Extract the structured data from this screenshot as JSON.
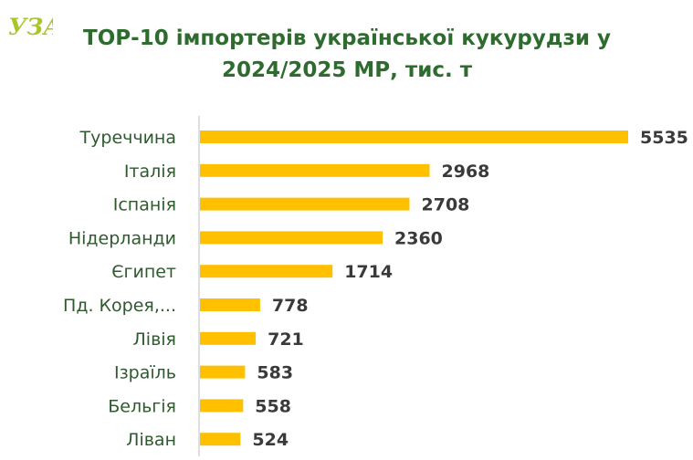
{
  "logo": {
    "text": "УЗА"
  },
  "chart_data": {
    "type": "bar",
    "orientation": "horizontal",
    "title": "ТОР-10 імпортерів української кукурудзи у 2024/2025 МР, тис. т",
    "title_lines": [
      "ТОР-10 імпортерів української кукурудзи у",
      "2024/2025 МР, тис. т"
    ],
    "categories": [
      "Туреччина",
      "Італія",
      "Іспанія",
      "Нідерланди",
      "Єгипет",
      "Пд. Корея,...",
      "Лівія",
      "Ізраїль",
      "Бельгія",
      "Ліван"
    ],
    "values": [
      5535,
      2968,
      2708,
      2360,
      1714,
      778,
      721,
      583,
      558,
      524
    ],
    "xlim": [
      0,
      5535
    ],
    "data_labels": true,
    "grid": false,
    "legend": "none",
    "colors": {
      "bar": "#FFC000",
      "axis": "#BFBFBF",
      "title": "#2E6B2E",
      "category_text": "#2E5A2E",
      "value_text": "#3A3A3A",
      "logo": "#A8C52A"
    }
  }
}
